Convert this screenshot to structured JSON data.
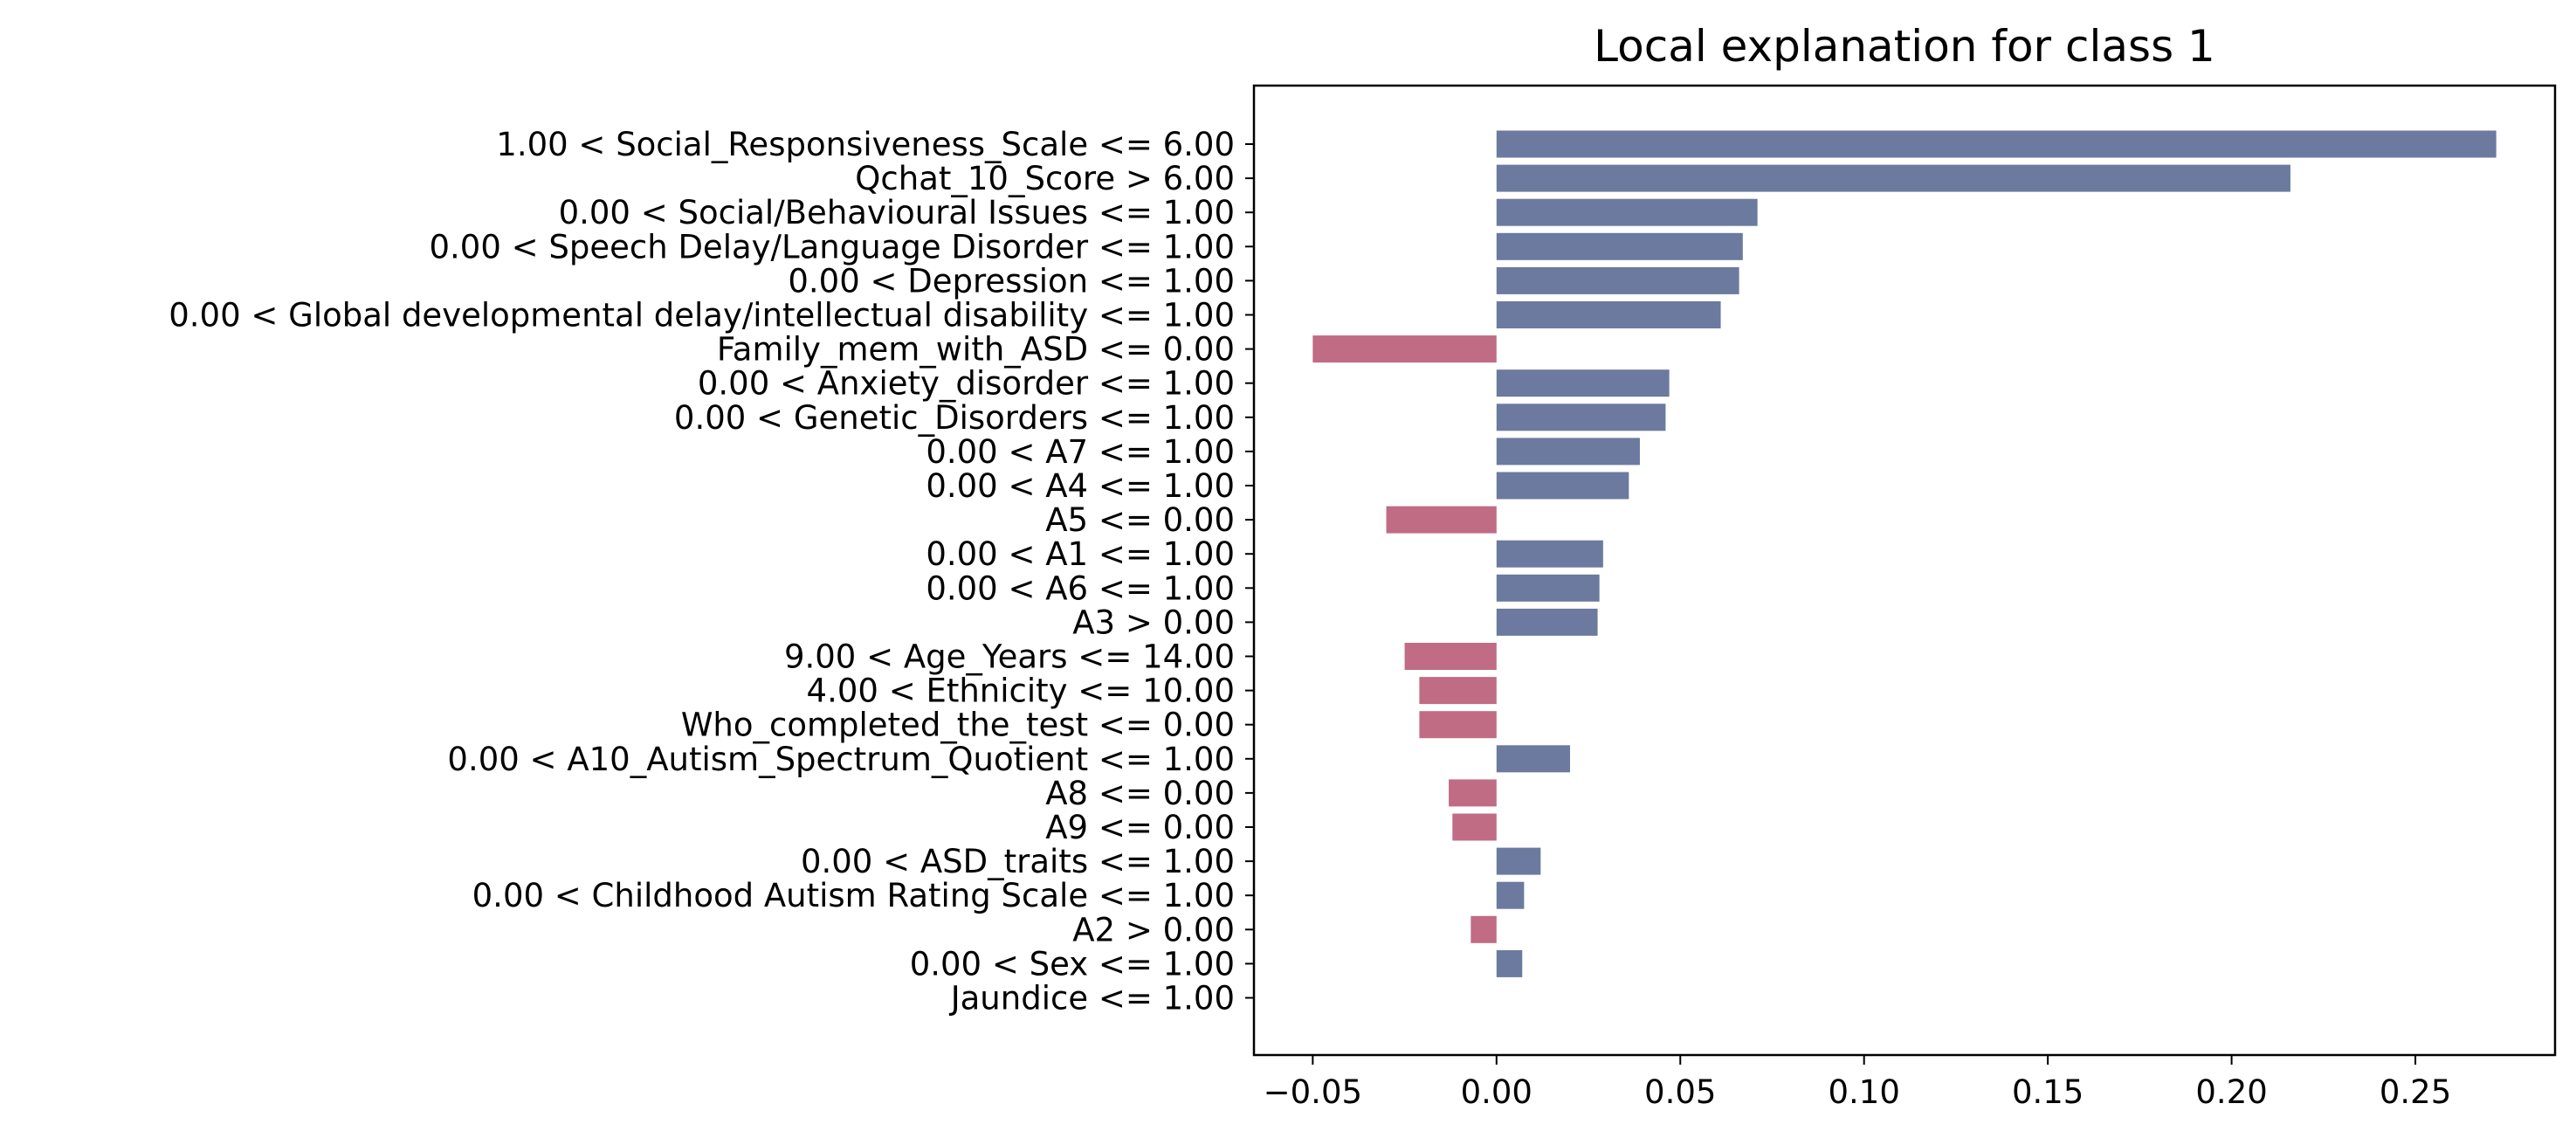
{
  "chart_data": {
    "type": "bar",
    "orientation": "horizontal",
    "title": "Local explanation for class 1",
    "xlabel": "",
    "ylabel": "",
    "xlim": [
      -0.066,
      0.288
    ],
    "xticks": [
      -0.05,
      0.0,
      0.05,
      0.1,
      0.15,
      0.2,
      0.25
    ],
    "xtick_labels": [
      "−0.05",
      "0.00",
      "0.05",
      "0.10",
      "0.15",
      "0.20",
      "0.25"
    ],
    "grid": false,
    "legend": "none",
    "colors": {
      "positive": "#6b7a9e",
      "negative": "#c06c84",
      "axis": "#000000",
      "background": "#ffffff"
    },
    "categories": [
      "1.00 < Social_Responsiveness_Scale <= 6.00",
      "Qchat_10_Score > 6.00",
      "0.00 < Social/Behavioural Issues <= 1.00",
      "0.00 < Speech Delay/Language Disorder <= 1.00",
      "0.00 < Depression <= 1.00",
      "0.00 < Global developmental delay/intellectual disability <= 1.00",
      "Family_mem_with_ASD <= 0.00",
      "0.00 < Anxiety_disorder <= 1.00",
      "0.00 < Genetic_Disorders <= 1.00",
      "0.00 < A7 <= 1.00",
      "0.00 < A4 <= 1.00",
      "A5 <= 0.00",
      "0.00 < A1 <= 1.00",
      "0.00 < A6 <= 1.00",
      "A3 > 0.00",
      "9.00 < Age_Years <= 14.00",
      "4.00 < Ethnicity <= 10.00",
      "Who_completed_the_test <= 0.00",
      "0.00 < A10_Autism_Spectrum_Quotient <= 1.00",
      "A8 <= 0.00",
      "A9 <= 0.00",
      "0.00 < ASD_traits <= 1.00",
      "0.00 < Childhood Autism Rating Scale <= 1.00",
      "A2 > 0.00",
      "0.00 < Sex <= 1.00",
      "Jaundice <= 1.00"
    ],
    "values": [
      0.272,
      0.216,
      0.071,
      0.067,
      0.066,
      0.061,
      -0.05,
      0.047,
      0.046,
      0.039,
      0.036,
      -0.03,
      0.029,
      0.028,
      0.0275,
      -0.025,
      -0.021,
      -0.021,
      0.02,
      -0.013,
      -0.012,
      0.012,
      0.0075,
      -0.007,
      0.007,
      0.0
    ]
  }
}
